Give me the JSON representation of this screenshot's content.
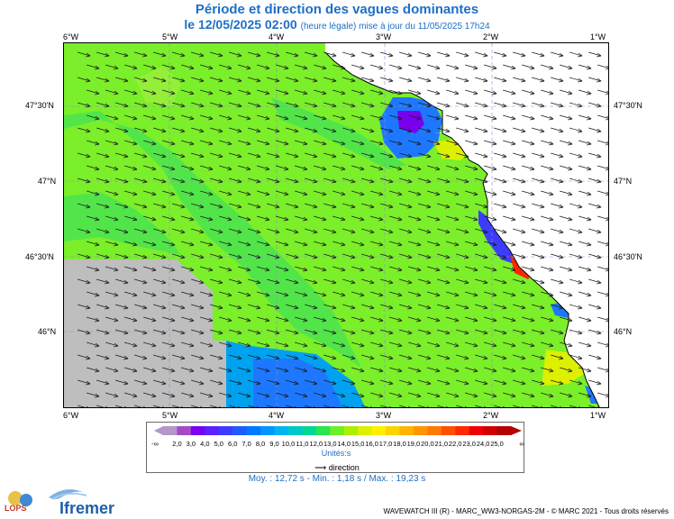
{
  "header": {
    "title": "Période et direction des vagues dominantes",
    "datetime": "le 12/05/2025 02:00",
    "update_note": "(heure légale) mise à jour du 11/05/2025 17h24"
  },
  "axes": {
    "lon_ticks": [
      "6°W",
      "5°W",
      "4°W",
      "3°W",
      "2°W",
      "1°W"
    ],
    "lat_ticks": [
      "47°30'N",
      "47°N",
      "46°30'N",
      "46°N"
    ]
  },
  "legend": {
    "labels": [
      "2,0",
      "3,0",
      "4,0",
      "5,0",
      "6,0",
      "7,0",
      "8,0",
      "9,0",
      "10,0",
      "11,0",
      "12,0",
      "13,0",
      "14,0",
      "15,0",
      "16,0",
      "17,0",
      "18,0",
      "19,0",
      "20,0",
      "21,0",
      "22,0",
      "23,0",
      "24,0",
      "25,0"
    ],
    "min_symbol": "-∞",
    "max_symbol": "∞",
    "unit": "Unités",
    "direction_label": "direction",
    "colors": [
      "#b497c8",
      "#a44bc8",
      "#7a00f0",
      "#5a20ff",
      "#3c3cff",
      "#1e5cff",
      "#0078ff",
      "#0096ff",
      "#00b4f0",
      "#00c8c8",
      "#00d896",
      "#28e650",
      "#6ef028",
      "#aaf000",
      "#dcf000",
      "#fff000",
      "#ffd200",
      "#ffb400",
      "#ff9600",
      "#ff7800",
      "#ff5000",
      "#ff2800",
      "#f00000",
      "#d20000",
      "#b40000"
    ]
  },
  "stats": {
    "text": "Moy. : 12,72 s   -   Min. : 1,18 s / Max. : 19,23 s"
  },
  "credit": "WAVEWATCH III (R) - MARC_WW3-NORGAS-2M - © MARC 2021 - Tous droits réservés",
  "logos": {
    "lops": "LOPS",
    "ifremer": "Ifremer"
  },
  "map": {
    "sea_color": "#7bef2a",
    "land_color": "#ffffff",
    "nodata_color": "#bebebe"
  }
}
